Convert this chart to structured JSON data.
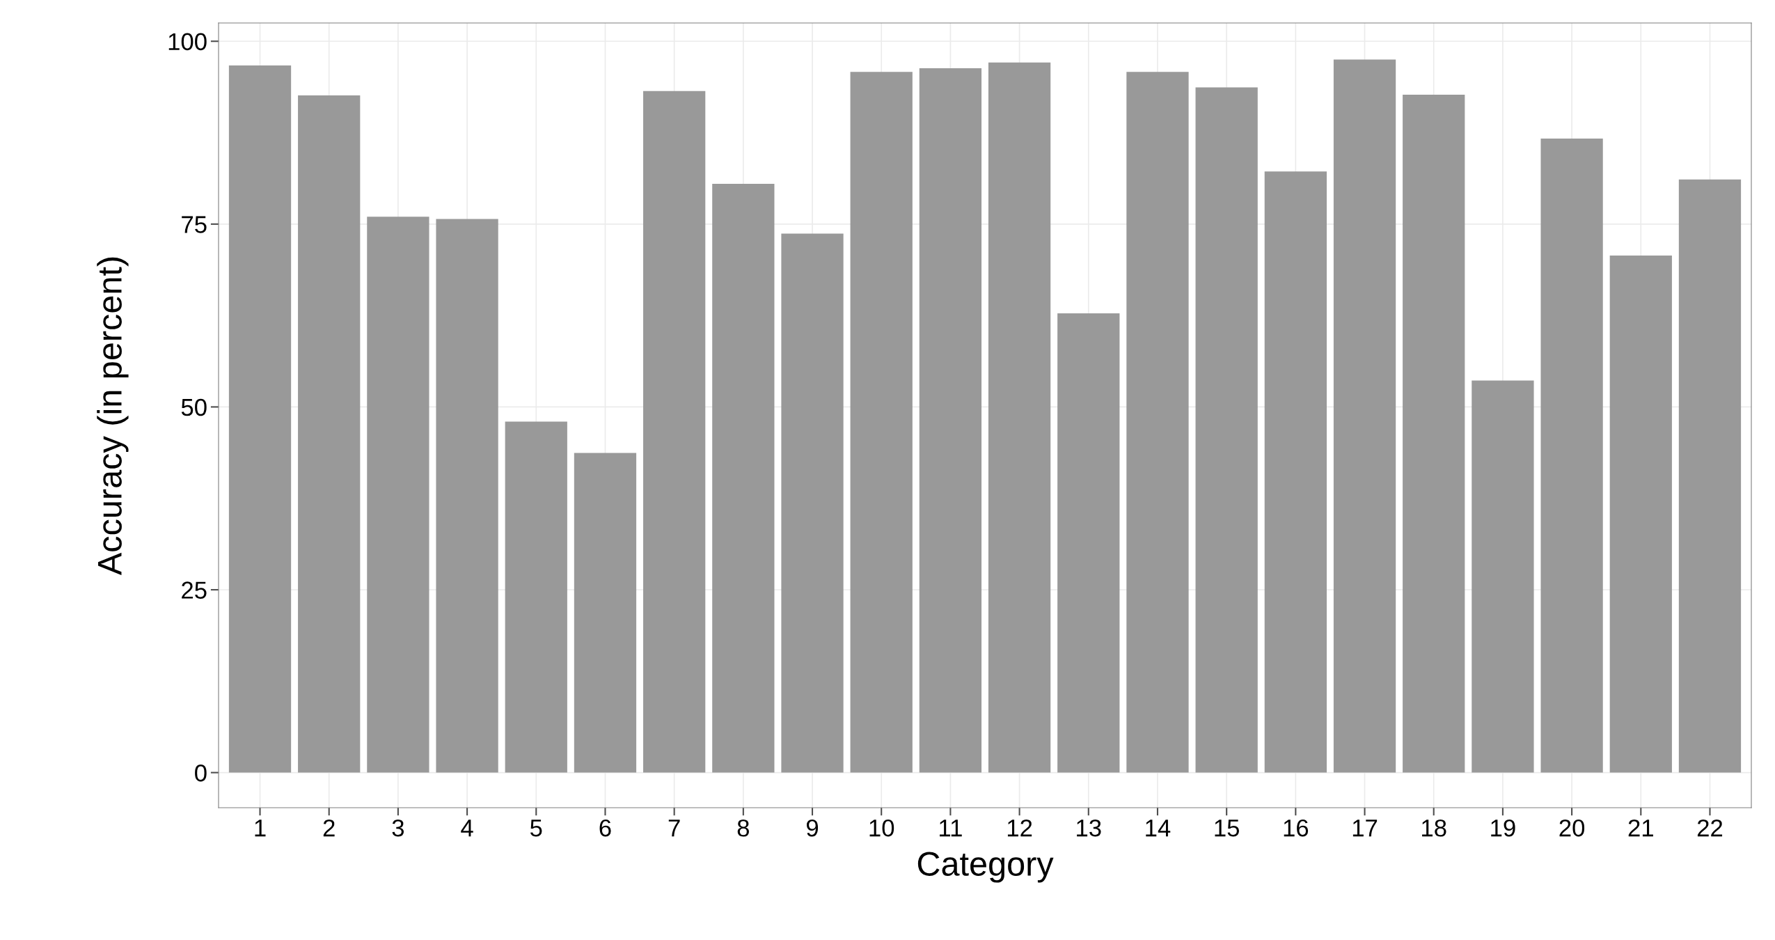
{
  "chart_data": {
    "type": "bar",
    "xlabel": "Category",
    "ylabel": "Accuracy (in percent)",
    "categories": [
      "1",
      "2",
      "3",
      "4",
      "5",
      "6",
      "7",
      "8",
      "9",
      "10",
      "11",
      "12",
      "13",
      "14",
      "15",
      "16",
      "17",
      "18",
      "19",
      "20",
      "21",
      "22"
    ],
    "values": [
      96.7,
      92.6,
      76.0,
      75.7,
      48.0,
      43.7,
      93.2,
      80.5,
      73.7,
      95.8,
      96.3,
      97.1,
      62.8,
      95.8,
      93.7,
      82.2,
      97.5,
      92.7,
      53.6,
      86.7,
      70.7,
      81.1
    ],
    "color": "#999999",
    "ylim": [
      -4.8,
      102.5
    ],
    "yticks": [
      0,
      25,
      50,
      75,
      100
    ],
    "grid": true
  }
}
